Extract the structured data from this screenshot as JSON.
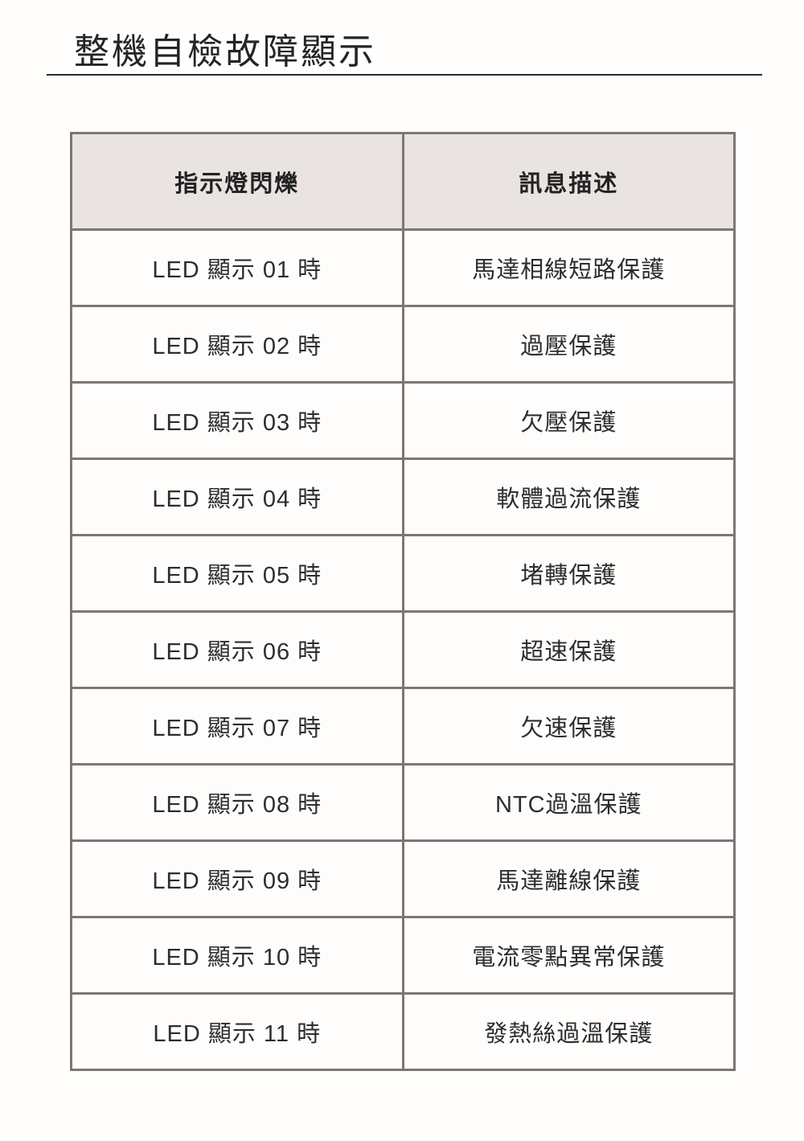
{
  "page": {
    "title": "整機自檢故障顯示"
  },
  "table": {
    "headers": [
      "指示燈閃爍",
      "訊息描述"
    ],
    "rows": [
      {
        "indicator": "LED 顯示 01 時",
        "description": "馬達相線短路保護"
      },
      {
        "indicator": "LED 顯示 02 時",
        "description": "過壓保護"
      },
      {
        "indicator": "LED 顯示 03 時",
        "description": "欠壓保護"
      },
      {
        "indicator": "LED 顯示 04 時",
        "description": "軟體過流保護"
      },
      {
        "indicator": "LED 顯示 05 時",
        "description": "堵轉保護"
      },
      {
        "indicator": "LED 顯示 06 時",
        "description": "超速保護"
      },
      {
        "indicator": "LED 顯示 07 時",
        "description": "欠速保護"
      },
      {
        "indicator": "LED 顯示 08 時",
        "description": "NTC過溫保護"
      },
      {
        "indicator": "LED 顯示 09 時",
        "description": "馬達離線保護"
      },
      {
        "indicator": "LED 顯示 10 時",
        "description": "電流零點異常保護"
      },
      {
        "indicator": "LED 顯示 11 時",
        "description": "發熱絲過溫保護"
      }
    ]
  },
  "colors": {
    "header_background": "#e9e3e1",
    "cell_background": "#fffdfb",
    "table_border": "#7c7674",
    "title_text": "#242424",
    "body_text": "#2d2d2d",
    "title_rule": "#2b2b2b"
  }
}
